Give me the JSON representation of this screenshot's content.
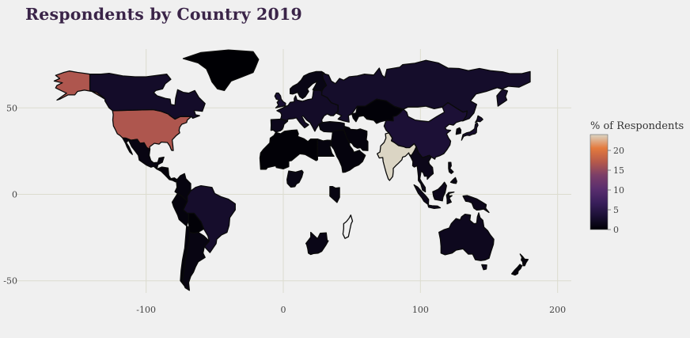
{
  "chart_data": {
    "type": "choropleth",
    "title": "Respondents by Country 2019",
    "colorbar": {
      "title": "% of Respondents",
      "ticks": [
        0,
        5,
        10,
        15,
        20
      ],
      "range": [
        0,
        24
      ]
    },
    "x_ticks": [
      -100,
      0,
      100,
      200
    ],
    "y_ticks": [
      50,
      0,
      -50
    ],
    "x_range": [
      -195,
      210
    ],
    "y_range": [
      -57,
      84
    ],
    "grid": true,
    "legend_position": "right",
    "colors": {
      "background": "#f0f0f0",
      "grid": "#dcdccf",
      "scale": [
        "#000004",
        "#1b1035",
        "#3a1f5c",
        "#5a2e6e",
        "#7b3e68",
        "#b65a4a",
        "#e47a3d",
        "#dbd5c4"
      ]
    },
    "regions": [
      {
        "name": "United States",
        "value": 16.7
      },
      {
        "name": "Alaska",
        "value": 16.7
      },
      {
        "name": "India",
        "value": 24.0
      },
      {
        "name": "Canada",
        "value": 2.6
      },
      {
        "name": "Mexico",
        "value": 1.0
      },
      {
        "name": "Central America",
        "value": 0.5
      },
      {
        "name": "Greenland",
        "value": 0.0
      },
      {
        "name": "Brazil",
        "value": 2.8
      },
      {
        "name": "Colombia",
        "value": 0.8
      },
      {
        "name": "Peru",
        "value": 0.6
      },
      {
        "name": "Bolivia",
        "value": 0.2
      },
      {
        "name": "Argentina",
        "value": 1.0
      },
      {
        "name": "Chile",
        "value": 0.6
      },
      {
        "name": "Russia",
        "value": 2.7
      },
      {
        "name": "Europe",
        "value": 2.5
      },
      {
        "name": "United Kingdom",
        "value": 3.2
      },
      {
        "name": "Scandinavia",
        "value": 1.2
      },
      {
        "name": "Spain",
        "value": 1.6
      },
      {
        "name": "Turkey",
        "value": 1.2
      },
      {
        "name": "Middle East",
        "value": 0.6
      },
      {
        "name": "Iran",
        "value": 0.6
      },
      {
        "name": "Kazakhstan",
        "value": 0.3
      },
      {
        "name": "China",
        "value": 3.5
      },
      {
        "name": "Japan",
        "value": 2.8
      },
      {
        "name": "South Korea",
        "value": 1.0
      },
      {
        "name": "Southeast Asia",
        "value": 1.5
      },
      {
        "name": "Indonesia",
        "value": 1.6
      },
      {
        "name": "Philippines",
        "value": 1.1
      },
      {
        "name": "Australia",
        "value": 1.8
      },
      {
        "name": "New Zealand",
        "value": 0.6
      },
      {
        "name": "North Africa",
        "value": 0.2
      },
      {
        "name": "Egypt",
        "value": 0.8
      },
      {
        "name": "Nigeria",
        "value": 1.2
      },
      {
        "name": "Kenya",
        "value": 1.0
      },
      {
        "name": "South Africa",
        "value": 1.3
      }
    ]
  }
}
